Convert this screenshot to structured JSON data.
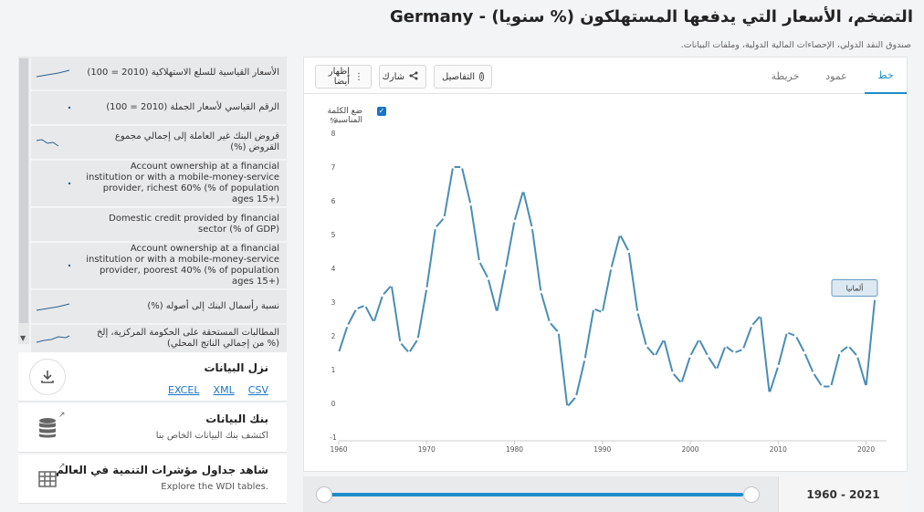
{
  "header": {
    "title": "التضخم، الأسعار التي يدفعها المستهلكون (% سنويا) - Germany",
    "source": "صندوق النقد الدولي، الإحصاءات المالية الدولية، وملفات البيانات."
  },
  "related": {
    "items": [
      {
        "label": "الأسعار القياسية للسلع الاستهلاكية (2010 = 100)",
        "spark": "line-up"
      },
      {
        "label": "الرقم القياسي لأسعار الجملة (2010 = 100)",
        "spark": "dot"
      },
      {
        "label": "قروض البنك غير العاملة إلى إجمالي مجموع القروض (%)",
        "spark": "wave-down"
      },
      {
        "label": "Account ownership at a financial institution or with a mobile-money-service provider, richest 60% (% of population ages 15+)",
        "spark": "dot"
      },
      {
        "label": "Domestic credit provided by financial sector (% of GDP)",
        "spark": "none"
      },
      {
        "label": "Account ownership at a financial institution or with a mobile-money-service provider, poorest 40% (% of population ages 15+)",
        "spark": "dot"
      },
      {
        "label": "نسبة رأسمال البنك إلى أصوله (%)",
        "spark": "line-up"
      },
      {
        "label": "المطالبات المستحقة على الحكومة المركزية، إلخ (% من إجمالي الناتج المحلي)",
        "spark": "wave-up"
      }
    ]
  },
  "download": {
    "title": "نزل البيانات",
    "links": [
      "EXCEL",
      "XML",
      "CSV"
    ],
    "icon": "download-icon"
  },
  "databank": {
    "title": "بنك البيانات",
    "subtitle": "اكتشف بنك البيانات الخاص بنا",
    "icon": "database-icon"
  },
  "wdi": {
    "title": "شاهد جداول مؤشرات التنمية في العالم",
    "subtitle": "Explore the WDI tables.",
    "icon": "table-icon"
  },
  "toolbar": {
    "details": "التفاصيل",
    "share": "شارك",
    "show_also": "إظهار أيضا",
    "tabs": [
      "خط",
      "عمود",
      "خريطة"
    ],
    "active_tab": "خط"
  },
  "chart_options": {
    "best_fit_label": "ضع الكلمة المناسبة",
    "best_fit_checked": true
  },
  "slider": {
    "range_label": "1960 - 2021",
    "start": 1960,
    "end": 2021
  },
  "colors": {
    "line": "#4a8db5",
    "accent": "#1d8dc9",
    "link": "#1a73c8"
  },
  "chart_data": {
    "type": "line",
    "ylabel": "%",
    "ylim": [
      -1,
      8
    ],
    "yticks": [
      -1,
      0,
      1,
      2,
      3,
      4,
      5,
      6,
      7,
      8
    ],
    "xticks": [
      1960,
      1970,
      1980,
      1990,
      2000,
      2010,
      2020
    ],
    "grid": false,
    "annotation": "ألمانيا",
    "x": [
      1960,
      1961,
      1962,
      1963,
      1964,
      1965,
      1966,
      1967,
      1968,
      1969,
      1970,
      1971,
      1972,
      1973,
      1974,
      1975,
      1976,
      1977,
      1978,
      1979,
      1980,
      1981,
      1982,
      1983,
      1984,
      1985,
      1986,
      1987,
      1988,
      1989,
      1990,
      1991,
      1992,
      1993,
      1994,
      1995,
      1996,
      1997,
      1998,
      1999,
      2000,
      2001,
      2002,
      2003,
      2004,
      2005,
      2006,
      2007,
      2008,
      2009,
      2010,
      2011,
      2012,
      2013,
      2014,
      2015,
      2016,
      2017,
      2018,
      2019,
      2020,
      2021
    ],
    "values": [
      1.5,
      2.3,
      2.8,
      2.9,
      2.4,
      3.2,
      3.5,
      1.8,
      1.5,
      1.9,
      3.4,
      5.2,
      5.5,
      7.0,
      7.0,
      5.9,
      4.2,
      3.7,
      2.7,
      4.0,
      5.4,
      6.3,
      5.2,
      3.3,
      2.4,
      2.1,
      -0.1,
      0.2,
      1.3,
      2.8,
      2.7,
      4.0,
      5.0,
      4.5,
      2.7,
      1.7,
      1.4,
      1.9,
      0.9,
      0.6,
      1.4,
      1.9,
      1.4,
      1.0,
      1.7,
      1.5,
      1.6,
      2.3,
      2.6,
      0.3,
      1.1,
      2.1,
      2.0,
      1.5,
      0.9,
      0.5,
      0.5,
      1.5,
      1.7,
      1.4,
      0.5,
      3.1
    ]
  }
}
